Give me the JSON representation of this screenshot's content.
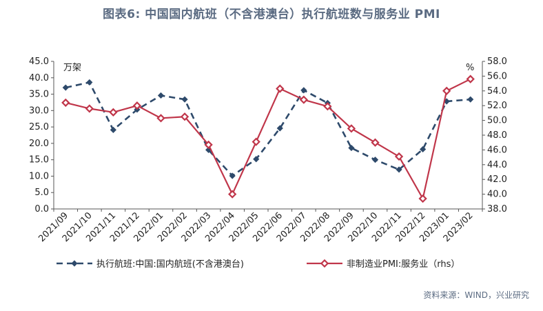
{
  "figure": {
    "title": "图表6:   中国国内航班（不含港澳台）执行航班数与服务业 PMI",
    "source": "资料来源：WIND，兴业研究"
  },
  "chart_data": {
    "type": "line",
    "categories": [
      "2021/09",
      "2021/10",
      "2021/11",
      "2021/12",
      "2022/01",
      "2022/02",
      "2022/03",
      "2022/04",
      "2022/05",
      "2022/06",
      "2022/07",
      "2022/08",
      "2022/09",
      "2022/10",
      "2022/11",
      "2022/12",
      "2023/01",
      "2023/02"
    ],
    "left_axis": {
      "unit": "万架",
      "range": [
        0,
        45
      ],
      "ticks": [
        "0.0",
        "5.0",
        "10.0",
        "15.0",
        "20.0",
        "25.0",
        "30.0",
        "35.0",
        "40.0",
        "45.0"
      ]
    },
    "right_axis": {
      "unit": "%",
      "range": [
        38,
        58
      ],
      "ticks": [
        "38.0",
        "40.0",
        "42.0",
        "44.0",
        "46.0",
        "48.0",
        "50.0",
        "52.0",
        "54.0",
        "56.0",
        "58.0"
      ]
    },
    "series": [
      {
        "name": "执行航班:中国:国内航班(不含港澳台)",
        "axis": "left",
        "color": "#2e4a6b",
        "style": "dashed",
        "marker": "diamond",
        "values": [
          37.0,
          38.6,
          24.1,
          30.3,
          34.6,
          33.4,
          18.0,
          10.1,
          15.2,
          24.6,
          36.2,
          32.3,
          18.6,
          15.0,
          12.0,
          18.2,
          32.8,
          33.4
        ]
      },
      {
        "name": "非制造业PMI:服务业（rhs）",
        "axis": "right",
        "color": "#c0364a",
        "style": "solid",
        "marker": "diamond-open",
        "values": [
          52.4,
          51.6,
          51.1,
          52.0,
          50.3,
          50.5,
          46.7,
          40.0,
          47.1,
          54.3,
          52.8,
          51.9,
          48.9,
          47.0,
          45.1,
          39.4,
          54.0,
          55.6
        ]
      }
    ],
    "grid": false,
    "legend_position": "bottom"
  }
}
